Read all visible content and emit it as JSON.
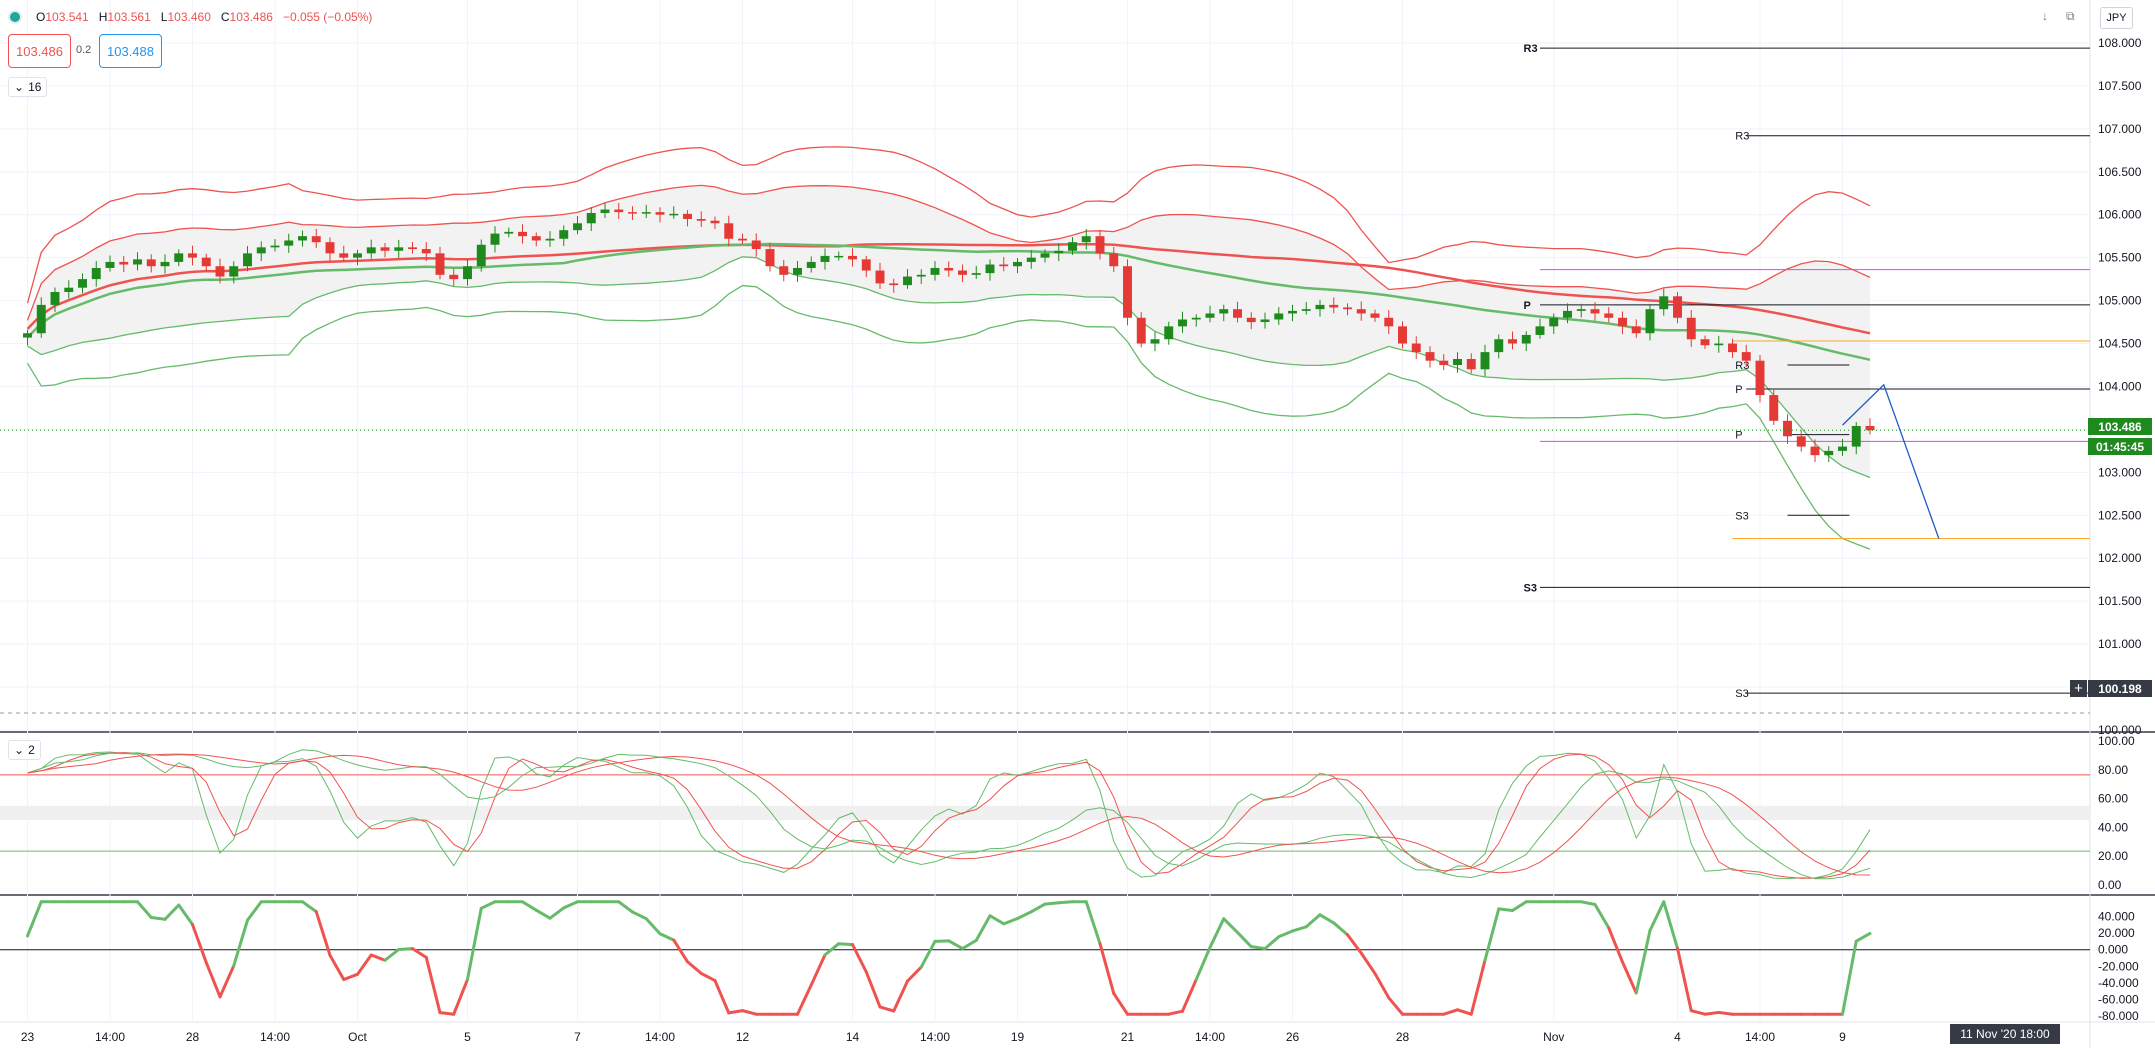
{
  "header": {
    "ohlc": [
      {
        "k": "O",
        "v": "103.541"
      },
      {
        "k": "H",
        "v": "103.561"
      },
      {
        "k": "L",
        "v": "103.460"
      },
      {
        "k": "C",
        "v": "103.486"
      },
      {
        "k": "",
        "v": "−0.055 (−0.05%)"
      }
    ],
    "sell_price": "103.486",
    "spread": "0.2",
    "buy_price": "103.488",
    "main_indicator_count": "16",
    "stoch_indicator_count": "2"
  },
  "currency": "JPY",
  "badges": {
    "last_price": "103.486",
    "countdown": "01:45:45",
    "crosshair_price": "100.198",
    "crosshair_time": "11 Nov '20  18:00"
  },
  "colors": {
    "up": "#1e8a1e",
    "down": "#e53935",
    "bb_red": "#ef5350",
    "bb_green": "#66bb6a",
    "pivot_line": "#131722",
    "magenta": "#e040fb",
    "orange": "#ffa726",
    "forecast": "#1e5bc6"
  },
  "chart_data": {
    "type": "candlestick",
    "symbol_currency": "JPY",
    "price_axis": {
      "min": 100.0,
      "max": 108.5,
      "step": 0.5,
      "labels": [
        "108.000",
        "107.500",
        "107.000",
        "106.500",
        "106.000",
        "105.500",
        "105.000",
        "104.500",
        "104.000",
        "103.500",
        "103.000",
        "102.500",
        "102.000",
        "101.500",
        "101.000",
        "100.500",
        "100.000"
      ]
    },
    "time_axis": {
      "start_index": -2,
      "end_index": 150,
      "labels": [
        {
          "i": 0,
          "t": "23"
        },
        {
          "i": 6,
          "t": "14:00"
        },
        {
          "i": 12,
          "t": "28"
        },
        {
          "i": 18,
          "t": "14:00"
        },
        {
          "i": 24,
          "t": "Oct"
        },
        {
          "i": 32,
          "t": "5"
        },
        {
          "i": 40,
          "t": "7"
        },
        {
          "i": 46,
          "t": "14:00"
        },
        {
          "i": 52,
          "t": "12"
        },
        {
          "i": 60,
          "t": "14"
        },
        {
          "i": 66,
          "t": "14:00"
        },
        {
          "i": 72,
          "t": "19"
        },
        {
          "i": 80,
          "t": "21"
        },
        {
          "i": 86,
          "t": "14:00"
        },
        {
          "i": 92,
          "t": "26"
        },
        {
          "i": 100,
          "t": "28"
        },
        {
          "i": 111,
          "t": "Nov"
        },
        {
          "i": 120,
          "t": "4"
        },
        {
          "i": 126,
          "t": "14:00"
        },
        {
          "i": 132,
          "t": "9"
        }
      ]
    },
    "close": [
      104.62,
      104.95,
      105.1,
      105.15,
      105.25,
      105.38,
      105.45,
      105.42,
      105.48,
      105.4,
      105.45,
      105.55,
      105.5,
      105.4,
      105.28,
      105.4,
      105.55,
      105.62,
      105.64,
      105.7,
      105.75,
      105.68,
      105.55,
      105.5,
      105.55,
      105.62,
      105.58,
      105.62,
      105.6,
      105.55,
      105.3,
      105.25,
      105.4,
      105.65,
      105.78,
      105.8,
      105.75,
      105.7,
      105.72,
      105.82,
      105.9,
      106.02,
      106.06,
      106.03,
      106.02,
      106.03,
      106.0,
      106.01,
      105.95,
      105.93,
      105.9,
      105.72,
      105.7,
      105.6,
      105.4,
      105.3,
      105.38,
      105.45,
      105.52,
      105.52,
      105.48,
      105.35,
      105.2,
      105.18,
      105.28,
      105.3,
      105.38,
      105.35,
      105.3,
      105.32,
      105.42,
      105.4,
      105.45,
      105.5,
      105.55,
      105.58,
      105.68,
      105.75,
      105.55,
      105.4,
      104.8,
      104.5,
      104.55,
      104.7,
      104.78,
      104.8,
      104.85,
      104.9,
      104.8,
      104.75,
      104.78,
      104.85,
      104.88,
      104.9,
      104.95,
      104.92,
      104.9,
      104.85,
      104.8,
      104.7,
      104.5,
      104.4,
      104.3,
      104.25,
      104.32,
      104.2,
      104.4,
      104.55,
      104.5,
      104.6,
      104.7,
      104.8,
      104.88,
      104.9,
      104.85,
      104.8,
      104.7,
      104.62,
      104.9,
      105.05,
      104.8,
      104.55,
      104.48,
      104.5,
      104.4,
      104.3,
      103.9,
      103.6,
      103.42,
      103.3,
      103.2,
      103.25,
      103.3,
      103.54,
      103.49
    ],
    "pivot_levels": {
      "monthly": {
        "R3": 107.94,
        "P": 104.95,
        "S3": 101.66
      },
      "weekly": {
        "R3": 106.92,
        "P": 103.97,
        "S3": 100.43
      },
      "daily": {
        "R3": 104.25,
        "P": 103.44,
        "S3": 102.5
      }
    },
    "horizontal_levels": [
      105.36,
      103.36,
      104.53,
      102.23
    ],
    "forecast_path": [
      {
        "i": 132,
        "price": 103.55
      },
      {
        "i": 135,
        "price": 104.02
      },
      {
        "i": 139,
        "price": 102.23
      }
    ],
    "stochastic_axis": {
      "min": 0,
      "max": 100,
      "labels": [
        "100.00",
        "80.00",
        "60.00",
        "40.00",
        "20.00",
        "0.00"
      ],
      "levels": [
        76.5,
        23.5
      ]
    },
    "oscillator_axis": {
      "min": -85,
      "max": 65,
      "labels": [
        "40.000",
        "20.000",
        "0.000",
        "-20.000",
        "-40.000",
        "-60.000",
        "-80.000"
      ]
    }
  }
}
